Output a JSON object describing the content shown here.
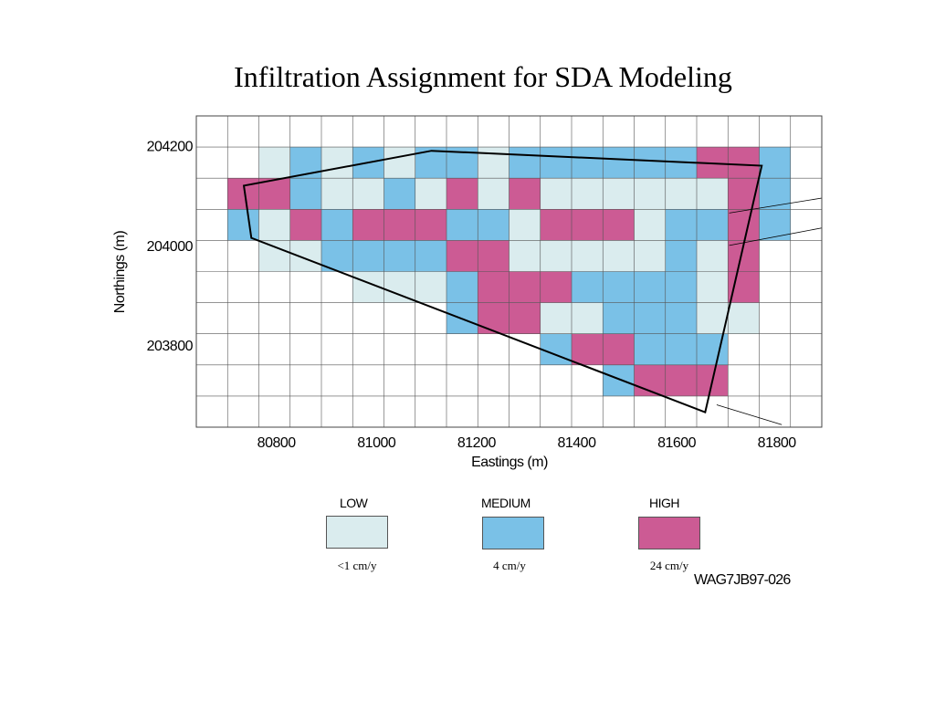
{
  "chart_data": {
    "type": "heatmap",
    "title": "Infiltration Assignment for SDA Modeling",
    "xlabel": "Eastings (m)",
    "ylabel": "Northings (m)",
    "xlim": [
      80640,
      81890
    ],
    "ylim": [
      203635,
      204260
    ],
    "grid": true,
    "xticks": [
      80800,
      81000,
      81200,
      81400,
      81600,
      81800
    ],
    "yticks": [
      203800,
      204000,
      204200
    ],
    "cell_size": 62.5,
    "cell_origin": {
      "east": 80702.5,
      "north": 204197.5
    },
    "colors": {
      "0": "#daecee",
      "1": "#7ac1e7",
      "2": "#cc5b94"
    },
    "rows": [
      [
        -1,
        0,
        1,
        0,
        1,
        0,
        1,
        1,
        0,
        1,
        1,
        1,
        1,
        1,
        1,
        2,
        2,
        1
      ],
      [
        2,
        2,
        1,
        0,
        0,
        1,
        0,
        2,
        0,
        2,
        0,
        0,
        0,
        0,
        0,
        0,
        2,
        1
      ],
      [
        1,
        0,
        2,
        1,
        2,
        2,
        2,
        1,
        1,
        0,
        2,
        2,
        2,
        0,
        1,
        1,
        2,
        1
      ],
      [
        -1,
        0,
        0,
        1,
        1,
        1,
        1,
        2,
        2,
        0,
        0,
        0,
        0,
        0,
        1,
        0,
        2,
        -1
      ],
      [
        -1,
        -1,
        -1,
        -1,
        0,
        0,
        0,
        1,
        2,
        2,
        2,
        1,
        1,
        1,
        1,
        0,
        2,
        -1
      ],
      [
        -1,
        -1,
        -1,
        -1,
        -1,
        -1,
        -1,
        1,
        2,
        2,
        0,
        0,
        1,
        1,
        1,
        0,
        0,
        -1
      ],
      [
        -1,
        -1,
        -1,
        -1,
        -1,
        -1,
        -1,
        -1,
        -1,
        -1,
        1,
        2,
        2,
        1,
        1,
        1,
        -1,
        -1
      ],
      [
        -1,
        -1,
        -1,
        -1,
        -1,
        -1,
        -1,
        -1,
        -1,
        -1,
        -1,
        -1,
        1,
        2,
        2,
        2,
        -1,
        -1
      ]
    ],
    "boundary": [
      [
        81110,
        204190
      ],
      [
        81770,
        204160
      ],
      [
        81657,
        203665
      ],
      [
        80750,
        204015
      ],
      [
        80735,
        204120
      ]
    ],
    "outer_lines": [
      [
        [
          81705,
          204065
        ],
        [
          81890,
          204095
        ]
      ],
      [
        [
          81705,
          204000
        ],
        [
          81890,
          204035
        ]
      ],
      [
        [
          81680,
          203680
        ],
        [
          81810,
          203640
        ]
      ]
    ],
    "legend": [
      {
        "label": "LOW",
        "rate": "<1 cm/y",
        "color": "#daecee"
      },
      {
        "label": "MEDIUM",
        "rate": "4 cm/y",
        "color": "#7ac1e7"
      },
      {
        "label": "HIGH",
        "rate": "24 cm/y",
        "color": "#cc5b94"
      }
    ]
  },
  "figure_id": "WAG7JB97-026"
}
